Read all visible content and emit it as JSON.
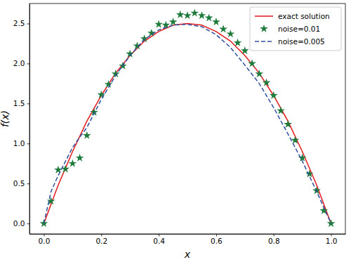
{
  "chart_data": {
    "type": "line",
    "x_label": "x",
    "y_label": "f(x)",
    "xlim": [
      -0.05,
      1.05
    ],
    "ylim": [
      -0.13,
      2.75
    ],
    "xticks": [
      {
        "value": 0,
        "label": "0.0"
      },
      0.2,
      0.4,
      0.6,
      0.8,
      {
        "value": 1,
        "label": "1.0"
      }
    ],
    "yticks": [
      {
        "value": 0,
        "label": "0.0"
      },
      0.5,
      {
        "value": 1,
        "label": "1.0"
      },
      1.5,
      {
        "value": 2,
        "label": "2.0"
      },
      2.5
    ],
    "grid": false,
    "legend": "upper right",
    "series": [
      {
        "name": "exact solution",
        "type": "line",
        "color": "#e3191c",
        "line_style": "solid",
        "x": [
          0,
          0.05,
          0.1,
          0.15,
          0.2,
          0.25,
          0.3,
          0.35,
          0.4,
          0.45,
          0.5,
          0.55,
          0.6,
          0.65,
          0.7,
          0.75,
          0.8,
          0.85,
          0.9,
          0.95,
          1.0
        ],
        "values": [
          0,
          0.48,
          0.9,
          1.28,
          1.6,
          1.88,
          2.1,
          2.28,
          2.4,
          2.48,
          2.5,
          2.48,
          2.4,
          2.28,
          2.1,
          1.88,
          1.6,
          1.28,
          0.9,
          0.48,
          0
        ]
      },
      {
        "name": "noise=0.01",
        "type": "scatter",
        "color": "#1e7b3c",
        "marker": "star",
        "x": [
          0,
          0.025,
          0.05,
          0.075,
          0.1,
          0.125,
          0.15,
          0.175,
          0.2,
          0.225,
          0.25,
          0.275,
          0.3,
          0.325,
          0.35,
          0.375,
          0.4,
          0.425,
          0.45,
          0.475,
          0.5,
          0.525,
          0.55,
          0.575,
          0.6,
          0.625,
          0.65,
          0.675,
          0.7,
          0.725,
          0.75,
          0.775,
          0.8,
          0.825,
          0.85,
          0.875,
          0.9,
          0.925,
          0.95,
          0.975,
          1.0
        ],
        "values": [
          0,
          0.28,
          0.67,
          0.68,
          0.75,
          0.82,
          1.1,
          1.39,
          1.61,
          1.74,
          1.87,
          1.97,
          2.12,
          2.22,
          2.31,
          2.38,
          2.49,
          2.48,
          2.52,
          2.61,
          2.6,
          2.63,
          2.6,
          2.57,
          2.52,
          2.43,
          2.37,
          2.26,
          2.16,
          2.0,
          1.87,
          1.76,
          1.6,
          1.41,
          1.24,
          1.04,
          0.82,
          0.62,
          0.41,
          0.16,
          0
        ]
      },
      {
        "name": "noise=0.005",
        "type": "line",
        "color": "#2f4f9f",
        "line_style": "dashed",
        "x": [
          0,
          0.025,
          0.05,
          0.1,
          0.125,
          0.15,
          0.2,
          0.25,
          0.3,
          0.35,
          0.4,
          0.45,
          0.5,
          0.55,
          0.6,
          0.65,
          0.7,
          0.75,
          0.8,
          0.85,
          0.9,
          0.95,
          1.0
        ],
        "values": [
          0,
          0.4,
          0.6,
          0.95,
          1.08,
          1.2,
          1.55,
          1.85,
          2.1,
          2.3,
          2.42,
          2.48,
          2.49,
          2.46,
          2.36,
          2.2,
          1.98,
          1.75,
          1.45,
          1.12,
          0.78,
          0.4,
          0
        ]
      }
    ]
  }
}
